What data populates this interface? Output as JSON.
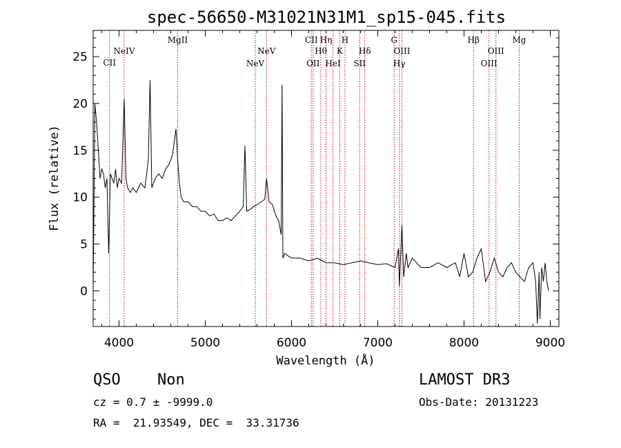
{
  "chart_data": {
    "type": "line",
    "title": "spec-56650-M31021N31M1_sp15-045.fits",
    "xlabel": "Wavelength (Å)",
    "ylabel": "Flux (relative)",
    "xlim": [
      3700,
      9100
    ],
    "ylim": [
      -3.8,
      27.8
    ],
    "xticks": [
      4000,
      5000,
      6000,
      7000,
      8000,
      9000
    ],
    "yticks": [
      0,
      5,
      10,
      15,
      20,
      25
    ],
    "grid": false,
    "series": [
      {
        "x": [
          3700,
          3720,
          3740,
          3760,
          3780,
          3800,
          3820,
          3840,
          3860,
          3880,
          3900,
          3920,
          3940,
          3960,
          3980,
          4000,
          4030,
          4060,
          4080,
          4100,
          4130,
          4160,
          4200,
          4250,
          4300,
          4340,
          4360,
          4380,
          4420,
          4460,
          4500,
          4540,
          4580,
          4620,
          4660,
          4680,
          4700,
          4720,
          4750,
          4800,
          4850,
          4900,
          4950,
          5000,
          5050,
          5100,
          5150,
          5200,
          5250,
          5300,
          5350,
          5400,
          5440,
          5460,
          5480,
          5520,
          5560,
          5600,
          5650,
          5690,
          5710,
          5740,
          5780,
          5800,
          5820,
          5850,
          5880,
          5890,
          5900,
          5920,
          5950,
          6000,
          6100,
          6200,
          6300,
          6400,
          6500,
          6600,
          6700,
          6800,
          6900,
          7000,
          7100,
          7200,
          7240,
          7250,
          7280,
          7300,
          7330,
          7350,
          7400,
          7500,
          7600,
          7700,
          7800,
          7900,
          7950,
          8000,
          8050,
          8100,
          8150,
          8200,
          8250,
          8300,
          8350,
          8400,
          8450,
          8500,
          8550,
          8600,
          8650,
          8700,
          8750,
          8800,
          8830,
          8850,
          8870,
          8880,
          8900,
          8920,
          8940,
          8960,
          8980
        ],
        "y": [
          0,
          20,
          18,
          15,
          12,
          13,
          12.5,
          11,
          12,
          4,
          12.5,
          12,
          11.5,
          13,
          11,
          12,
          11.5,
          20.5,
          12,
          11,
          10.5,
          11,
          10.5,
          11.5,
          11,
          14,
          22.5,
          11,
          12,
          12.5,
          12,
          13,
          13.5,
          14.5,
          17.3,
          14,
          11.5,
          10,
          9.5,
          9.5,
          9,
          9,
          8.5,
          8.5,
          8,
          8.2,
          7.5,
          7.5,
          7.8,
          7.5,
          8,
          8.5,
          9,
          15.5,
          8.5,
          8.7,
          9,
          9.2,
          9.5,
          9.8,
          12,
          9.5,
          9.2,
          8.5,
          8,
          7.5,
          6,
          22,
          3.5,
          4,
          3.8,
          3.5,
          3.5,
          3.2,
          3.5,
          3.0,
          3.0,
          2.8,
          3.0,
          3.2,
          3.0,
          2.8,
          2.9,
          2.5,
          4.5,
          0.5,
          7,
          1.5,
          4,
          2.5,
          3.5,
          2.5,
          2.5,
          3,
          2.5,
          3,
          1.5,
          4,
          1.5,
          2,
          3.5,
          4.5,
          1.0,
          2.0,
          3.5,
          2.0,
          1.5,
          2.5,
          3.0,
          2.0,
          1.5,
          1.0,
          2.5,
          3.0,
          1.0,
          -3.5,
          2.0,
          -3.0,
          2.5,
          1.0,
          3.0,
          1.0,
          0
        ]
      }
    ],
    "emission_lines": [
      {
        "name": "CII",
        "x": 3890,
        "tier": 2
      },
      {
        "name": "NeIV",
        "x": 4060,
        "tier": 0
      },
      {
        "name": "MgII",
        "x": 4680,
        "tier": -1
      },
      {
        "name": "NeV",
        "x": 5580,
        "tier": 1
      },
      {
        "name": "NeV",
        "x": 5710,
        "tier": 0
      },
      {
        "name": "CII",
        "x": 6230,
        "tier": -1
      },
      {
        "name": "OII",
        "x": 6250,
        "tier": 1
      },
      {
        "name": "Hθ",
        "x": 6340,
        "tier": 0
      },
      {
        "name": "Hη",
        "x": 6400,
        "tier": -1
      },
      {
        "name": "HeI",
        "x": 6480,
        "tier": 1
      },
      {
        "name": "K",
        "x": 6560,
        "tier": 0
      },
      {
        "name": "H",
        "x": 6620,
        "tier": -1
      },
      {
        "name": "SII",
        "x": 6790,
        "tier": 1
      },
      {
        "name": "Hδ",
        "x": 6850,
        "tier": 0
      },
      {
        "name": "G",
        "x": 7190,
        "tier": -1
      },
      {
        "name": "Hγ",
        "x": 7250,
        "tier": 1
      },
      {
        "name": "OIII",
        "x": 7280,
        "tier": 0
      },
      {
        "name": "Hβ",
        "x": 8110,
        "tier": -1
      },
      {
        "name": "OIII",
        "x": 8290,
        "tier": 1
      },
      {
        "name": "OIII",
        "x": 8370,
        "tier": 0
      },
      {
        "name": "Mg",
        "x": 8640,
        "tier": -1
      }
    ]
  },
  "info": {
    "class_label": "QSO",
    "subclass_label": "Non",
    "survey": "LAMOST DR3",
    "cz_line": "cz = 0.7 ± -9999.0",
    "obs_date": "Obs-Date: 20131223",
    "coords": "RA =  21.93549, DEC =  33.31736"
  }
}
